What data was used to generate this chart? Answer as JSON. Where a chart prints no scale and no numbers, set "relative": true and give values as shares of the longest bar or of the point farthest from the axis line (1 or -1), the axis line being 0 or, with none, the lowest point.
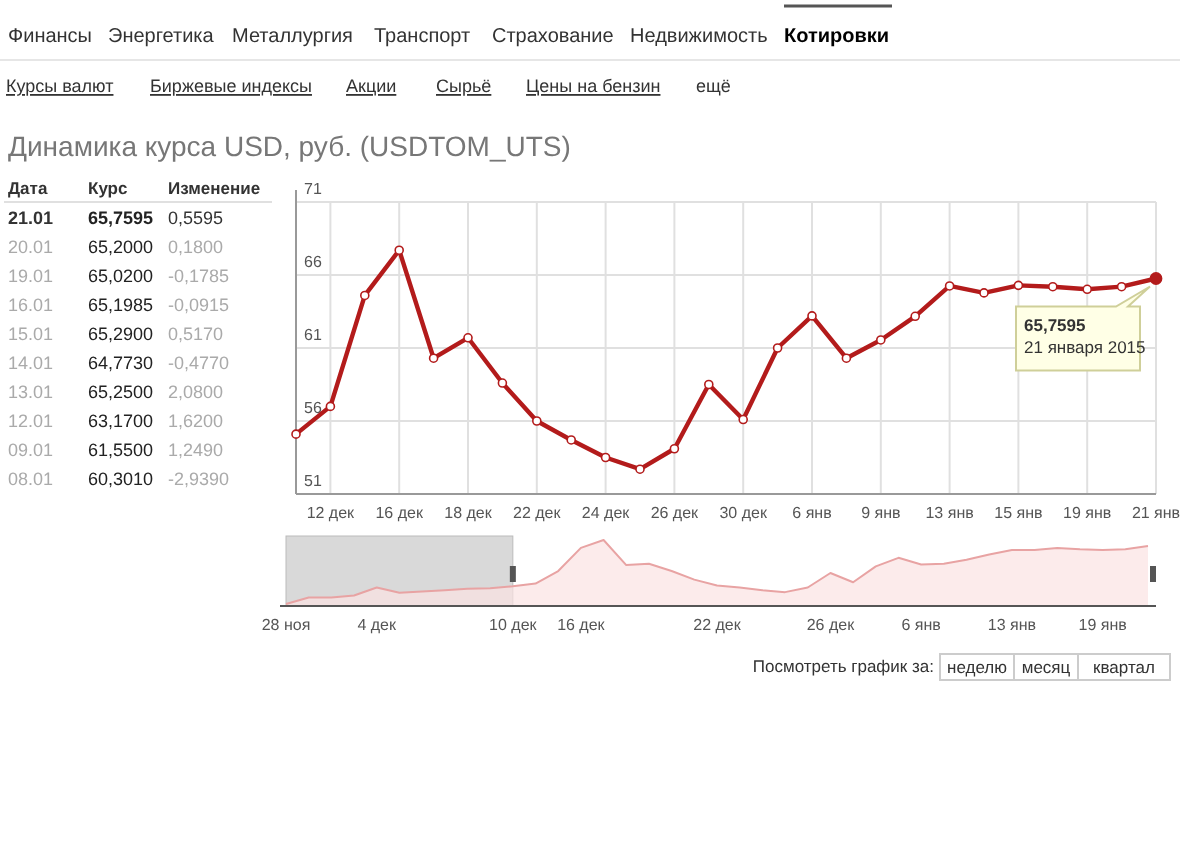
{
  "chart_data": [
    {
      "type": "other",
      "annotations": [
        "Финансы",
        "Энергетика",
        "Металлургия",
        "Транспорт",
        "Страхование",
        "Недвижимость",
        "Котировки"
      ]
    },
    {
      "type": "other",
      "annotations": [
        "Курсы валют",
        "Биржевые индексы",
        "Акции",
        "Сырьё",
        "Цены на бензин",
        "ещё"
      ]
    },
    {
      "type": "line",
      "title": "Динамика курса USD, руб. (USDTOM_UTS)",
      "categories": [
        null,
        "12 дек",
        null,
        "16 дек",
        null,
        "18 дек",
        null,
        "22 дек",
        null,
        "24 дек",
        null,
        "26 дек",
        null,
        "30 дек",
        null,
        "6 янв",
        null,
        "9 янв",
        null,
        "13 янв",
        null,
        "15 янв",
        null,
        "19 янв",
        null,
        "21 янв"
      ],
      "series": [
        {
          "color": "#b31b1b",
          "values": [
            55.1,
            57.0,
            64.6,
            67.7,
            60.3,
            61.7,
            58.6,
            56.0,
            54.7,
            53.5,
            52.7,
            54.1,
            58.5,
            56.1,
            61.0,
            63.2,
            60.301,
            61.55,
            63.17,
            65.25,
            64.773,
            65.29,
            65.1985,
            65.02,
            65.2,
            65.7595
          ]
        }
      ],
      "ylim": [
        51,
        71
      ],
      "yticks": [
        51,
        56,
        61,
        66,
        71
      ],
      "grid": true,
      "marker": "circle",
      "annotations": [
        {
          "text": "65,7595\n21 января 2015",
          "x": "21 янв",
          "y": 65.7595
        }
      ]
    },
    {
      "type": "other",
      "annotations": [
        "Дата",
        "Курс",
        "Изменение",
        "21.01",
        "65,7595",
        "0,5595",
        "20.01",
        "65,2000",
        "0,1800",
        "19.01",
        "65,0200",
        "-0,1785",
        "16.01",
        "65,1985",
        "-0,0915",
        "15.01",
        "65,2900",
        "0,5170",
        "14.01",
        "64,7730",
        "-0,4770",
        "13.01",
        "65,2500",
        "2,0800",
        "12.01",
        "63,1700",
        "1,6200",
        "09.01",
        "61,5500",
        "1,2490",
        "08.01",
        "60,3010",
        "-2,9390"
      ]
    },
    {
      "type": "area",
      "relative": true,
      "categories": [
        "28 ноя",
        null,
        null,
        null,
        "4 дек",
        null,
        null,
        null,
        null,
        null,
        "10 дек",
        null,
        null,
        "16 дек",
        null,
        null,
        null,
        null,
        null,
        "22 дек",
        null,
        null,
        null,
        null,
        "26 дек",
        null,
        null,
        null,
        "6 янв",
        null,
        null,
        null,
        "13 янв",
        null,
        null,
        null,
        "19 янв",
        null,
        null
      ],
      "series": [
        {
          "color": "#e8a3a3",
          "values": [
            0.03,
            0.13,
            0.13,
            0.16,
            0.28,
            0.2,
            0.22,
            0.24,
            0.26,
            0.27,
            0.3,
            0.34,
            0.53,
            0.88,
            1,
            0.62,
            0.64,
            0.53,
            0.4,
            0.31,
            0.28,
            0.24,
            0.21,
            0.28,
            0.5,
            0.36,
            0.6,
            0.73,
            0.63,
            0.64,
            0.7,
            0.78,
            0.85,
            0.85,
            0.88,
            0.86,
            0.85,
            0.86,
            0.91
          ]
        }
      ],
      "bands": [
        {
          "axis": "x",
          "from": "28 ноя",
          "to": "10 дек",
          "color": "#d9d9d9"
        }
      ]
    },
    {
      "type": "other",
      "title": "Посмотреть график за:",
      "annotations": [
        "неделю",
        "месяц",
        "квартал"
      ]
    }
  ]
}
